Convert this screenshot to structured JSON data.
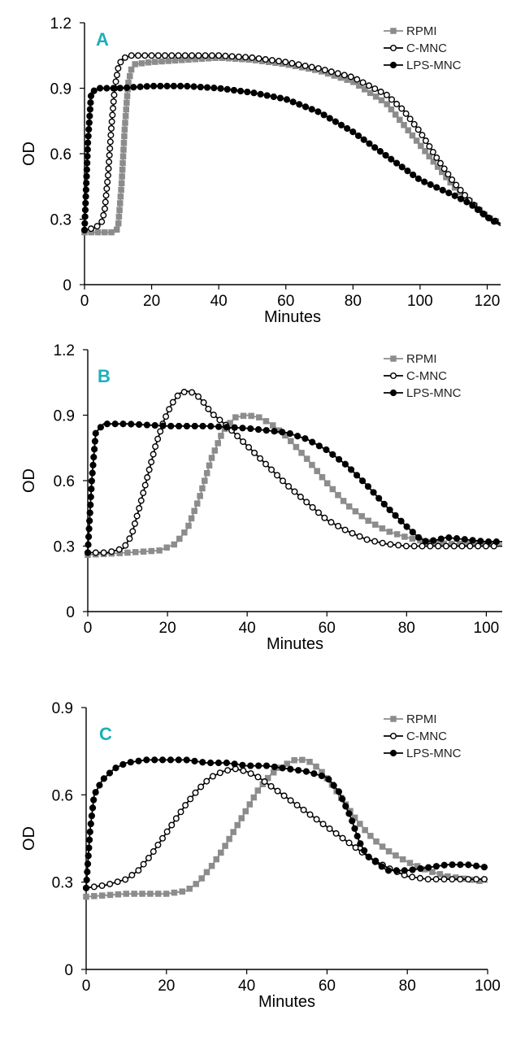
{
  "colors": {
    "panel_letter": "#1ab0b8",
    "RPMI": "#8c8c8c",
    "C-MNC": "#000000",
    "LPS-MNC": "#000000"
  },
  "chart_data": [
    {
      "type": "line",
      "panel_label": "A",
      "xlabel": "Minutes",
      "ylabel": "OD",
      "xlim": [
        0,
        124
      ],
      "ylim": [
        0,
        1.2
      ],
      "xticks": [
        "0",
        "20",
        "40",
        "60",
        "80",
        "100",
        "120"
      ],
      "xtick_values": [
        0,
        20,
        40,
        60,
        80,
        100,
        120
      ],
      "yticks": [
        "0",
        "0.3",
        "0.6",
        "0.9",
        "1.2"
      ],
      "ytick_values": [
        0,
        0.3,
        0.6,
        0.9,
        1.2
      ],
      "legend": [
        "RPMI",
        "C-MNC",
        "LPS-MNC"
      ],
      "legend_position": "top-right",
      "series": [
        {
          "name": "RPMI",
          "marker": "square-filled-gray",
          "x": [
            0,
            5,
            9,
            10,
            11,
            12,
            13,
            14,
            15,
            20,
            30,
            40,
            50,
            60,
            70,
            80,
            90,
            100,
            110,
            115,
            120,
            124
          ],
          "y": [
            0.24,
            0.24,
            0.24,
            0.26,
            0.45,
            0.72,
            0.92,
            0.99,
            1.01,
            1.02,
            1.03,
            1.04,
            1.03,
            1.01,
            0.98,
            0.93,
            0.83,
            0.64,
            0.45,
            0.38,
            0.31,
            0.28
          ]
        },
        {
          "name": "C-MNC",
          "marker": "circle-open",
          "x": [
            0,
            3,
            5,
            6,
            7,
            8,
            9,
            10,
            11,
            12,
            14,
            20,
            30,
            40,
            50,
            60,
            70,
            80,
            90,
            95,
            100,
            105,
            110,
            115,
            120,
            124
          ],
          "y": [
            0.25,
            0.26,
            0.28,
            0.34,
            0.5,
            0.72,
            0.9,
            0.99,
            1.03,
            1.04,
            1.05,
            1.05,
            1.05,
            1.05,
            1.04,
            1.02,
            0.99,
            0.95,
            0.87,
            0.8,
            0.7,
            0.58,
            0.47,
            0.38,
            0.31,
            0.28
          ]
        },
        {
          "name": "LPS-MNC",
          "marker": "circle-filled",
          "x": [
            0,
            1,
            2,
            4,
            10,
            20,
            30,
            40,
            50,
            60,
            70,
            80,
            90,
            100,
            110,
            115,
            120,
            124
          ],
          "y": [
            0.25,
            0.65,
            0.88,
            0.9,
            0.9,
            0.91,
            0.91,
            0.9,
            0.88,
            0.85,
            0.79,
            0.7,
            0.59,
            0.48,
            0.41,
            0.37,
            0.31,
            0.27
          ]
        }
      ]
    },
    {
      "type": "line",
      "panel_label": "B",
      "xlabel": "Minutes",
      "ylabel": "OD",
      "xlim": [
        0,
        104
      ],
      "ylim": [
        0,
        1.2
      ],
      "xticks": [
        "0",
        "20",
        "40",
        "60",
        "80",
        "100"
      ],
      "xtick_values": [
        0,
        20,
        40,
        60,
        80,
        100
      ],
      "yticks": [
        "0",
        "0.3",
        "0.6",
        "0.9",
        "1.2"
      ],
      "ytick_values": [
        0,
        0.3,
        0.6,
        0.9,
        1.2
      ],
      "legend": [
        "RPMI",
        "C-MNC",
        "LPS-MNC"
      ],
      "legend_position": "top-right",
      "series": [
        {
          "name": "RPMI",
          "marker": "square-filled-gray",
          "x": [
            0,
            10,
            18,
            22,
            25,
            28,
            31,
            34,
            37,
            40,
            43,
            46,
            50,
            55,
            60,
            65,
            70,
            75,
            80,
            85,
            90,
            95,
            100,
            104
          ],
          "y": [
            0.26,
            0.27,
            0.28,
            0.31,
            0.38,
            0.52,
            0.7,
            0.83,
            0.89,
            0.9,
            0.89,
            0.86,
            0.8,
            0.7,
            0.59,
            0.49,
            0.42,
            0.37,
            0.34,
            0.32,
            0.31,
            0.31,
            0.31,
            0.31
          ]
        },
        {
          "name": "C-MNC",
          "marker": "circle-open",
          "x": [
            0,
            5,
            9,
            11,
            13,
            15,
            17,
            19,
            21,
            23,
            25,
            27,
            29,
            31,
            35,
            40,
            45,
            50,
            55,
            60,
            65,
            70,
            75,
            80,
            85,
            90,
            95,
            100,
            104
          ],
          "y": [
            0.27,
            0.27,
            0.29,
            0.35,
            0.48,
            0.62,
            0.76,
            0.87,
            0.95,
            1.0,
            1.01,
            1.0,
            0.96,
            0.91,
            0.85,
            0.76,
            0.67,
            0.58,
            0.5,
            0.42,
            0.37,
            0.33,
            0.31,
            0.3,
            0.3,
            0.3,
            0.3,
            0.3,
            0.3
          ]
        },
        {
          "name": "LPS-MNC",
          "marker": "circle-filled",
          "x": [
            0,
            1,
            2,
            4,
            10,
            20,
            30,
            40,
            50,
            55,
            60,
            65,
            70,
            75,
            80,
            83,
            85,
            88,
            90,
            95,
            100,
            104
          ],
          "y": [
            0.27,
            0.6,
            0.82,
            0.86,
            0.86,
            0.85,
            0.85,
            0.84,
            0.82,
            0.79,
            0.74,
            0.67,
            0.58,
            0.48,
            0.39,
            0.34,
            0.32,
            0.33,
            0.34,
            0.33,
            0.32,
            0.32
          ]
        }
      ]
    },
    {
      "type": "line",
      "panel_label": "C",
      "xlabel": "Minutes",
      "ylabel": "OD",
      "xlim": [
        0,
        100
      ],
      "ylim": [
        0,
        0.9
      ],
      "xticks": [
        "0",
        "20",
        "40",
        "60",
        "80",
        "100"
      ],
      "xtick_values": [
        0,
        20,
        40,
        60,
        80,
        100
      ],
      "yticks": [
        "0",
        "0.3",
        "0.6",
        "0.9"
      ],
      "ytick_values": [
        0,
        0.3,
        0.6,
        0.9
      ],
      "legend": [
        "RPMI",
        "C-MNC",
        "LPS-MNC"
      ],
      "legend_position": "top-right",
      "series": [
        {
          "name": "RPMI",
          "marker": "square-filled-gray",
          "x": [
            0,
            10,
            20,
            25,
            28,
            31,
            34,
            37,
            40,
            43,
            46,
            49,
            52,
            55,
            58,
            61,
            64,
            67,
            70,
            73,
            76,
            80,
            85,
            90,
            95,
            100
          ],
          "y": [
            0.25,
            0.26,
            0.26,
            0.27,
            0.3,
            0.35,
            0.41,
            0.48,
            0.55,
            0.62,
            0.67,
            0.7,
            0.72,
            0.72,
            0.69,
            0.64,
            0.58,
            0.52,
            0.47,
            0.43,
            0.4,
            0.37,
            0.34,
            0.32,
            0.31,
            0.3
          ]
        },
        {
          "name": "C-MNC",
          "marker": "circle-open",
          "x": [
            0,
            5,
            10,
            13,
            16,
            19,
            22,
            25,
            28,
            31,
            34,
            37,
            40,
            43,
            46,
            50,
            55,
            60,
            65,
            70,
            75,
            80,
            85,
            90,
            95,
            100
          ],
          "y": [
            0.28,
            0.29,
            0.31,
            0.34,
            0.39,
            0.45,
            0.51,
            0.57,
            0.62,
            0.66,
            0.68,
            0.69,
            0.68,
            0.66,
            0.63,
            0.59,
            0.54,
            0.49,
            0.44,
            0.39,
            0.35,
            0.32,
            0.31,
            0.31,
            0.31,
            0.31
          ]
        },
        {
          "name": "LPS-MNC",
          "marker": "circle-filled",
          "x": [
            0,
            1,
            2,
            4,
            7,
            10,
            15,
            20,
            25,
            30,
            35,
            40,
            45,
            50,
            55,
            60,
            63,
            66,
            68,
            70,
            75,
            80,
            85,
            90,
            95,
            100
          ],
          "y": [
            0.28,
            0.48,
            0.6,
            0.65,
            0.69,
            0.71,
            0.72,
            0.72,
            0.72,
            0.71,
            0.71,
            0.7,
            0.7,
            0.69,
            0.68,
            0.66,
            0.61,
            0.52,
            0.44,
            0.39,
            0.34,
            0.34,
            0.35,
            0.36,
            0.36,
            0.35
          ]
        }
      ]
    }
  ]
}
